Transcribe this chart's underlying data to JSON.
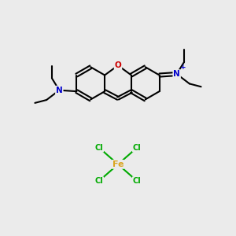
{
  "bg_color": "#EBEBEB",
  "bond_color": "#000000",
  "bond_width": 1.5,
  "atom_colors": {
    "N": "#0000CC",
    "O": "#CC0000",
    "Cl": "#00AA00",
    "Fe": "#DAA520"
  },
  "figsize": [
    3.0,
    3.0
  ],
  "dpi": 100
}
